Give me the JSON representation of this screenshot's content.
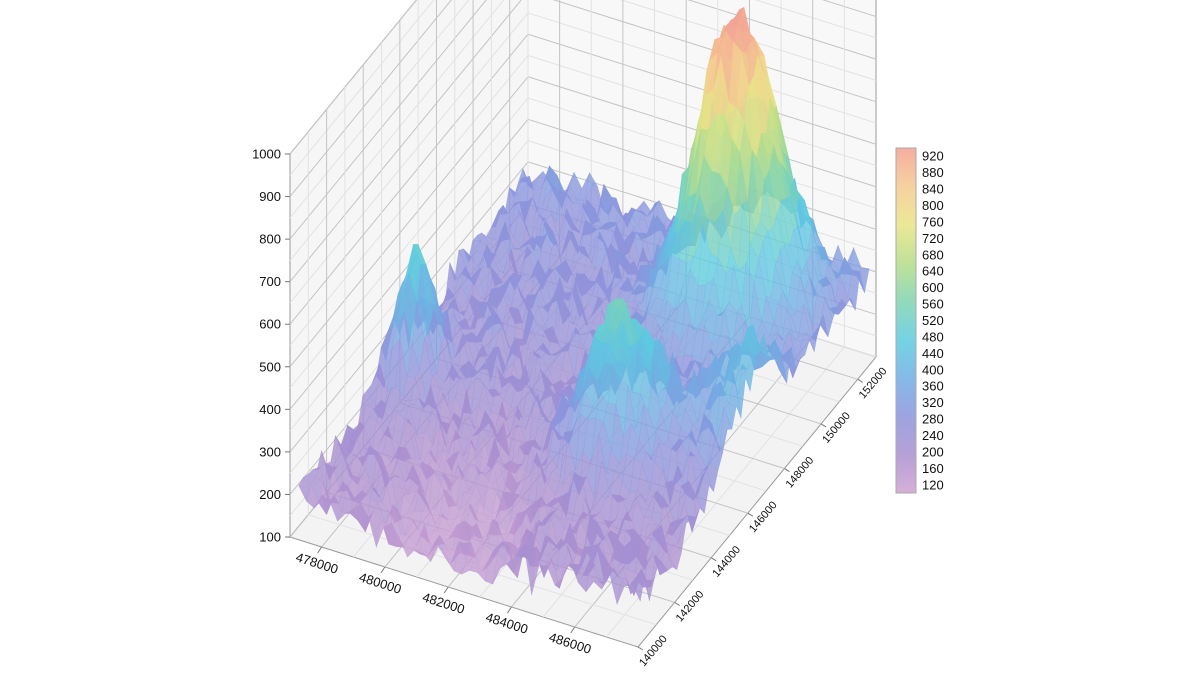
{
  "chart_data": {
    "type": "surface3d",
    "title": "",
    "xlabel": "",
    "ylabel": "",
    "zlabel": "",
    "x_ticks": [
      "478000",
      "480000",
      "482000",
      "484000",
      "486000"
    ],
    "y_ticks": [
      "140000",
      "142000",
      "144000",
      "146000",
      "148000",
      "150000",
      "152000"
    ],
    "z_ticks": [
      "100",
      "200",
      "300",
      "400",
      "500",
      "600",
      "700",
      "800",
      "900",
      "1000"
    ],
    "x_range": [
      477000,
      488000
    ],
    "y_range": [
      140000,
      153000
    ],
    "z_range": [
      100,
      1000
    ],
    "colorbar": {
      "ticks": [
        "120",
        "160",
        "200",
        "240",
        "280",
        "320",
        "360",
        "400",
        "440",
        "480",
        "520",
        "560",
        "600",
        "640",
        "680",
        "720",
        "760",
        "800",
        "840",
        "880",
        "920"
      ],
      "range": [
        100,
        940
      ],
      "colors": [
        "#cfa1d2",
        "#a98fcf",
        "#8c93dc",
        "#6faee3",
        "#5ccbe0",
        "#7fd3b0",
        "#b5dc86",
        "#e8e484",
        "#f5c98f",
        "#f2a08f"
      ]
    },
    "surface_peaks": [
      {
        "x": 485000,
        "y": 150500,
        "z": 930
      },
      {
        "x": 477800,
        "y": 145500,
        "z": 525
      },
      {
        "x": 484500,
        "y": 145000,
        "z": 520
      },
      {
        "x": 487500,
        "y": 147000,
        "z": 380
      }
    ],
    "valley_min": {
      "x": 481500,
      "y": 141000,
      "z": 130
    },
    "grid": true
  }
}
